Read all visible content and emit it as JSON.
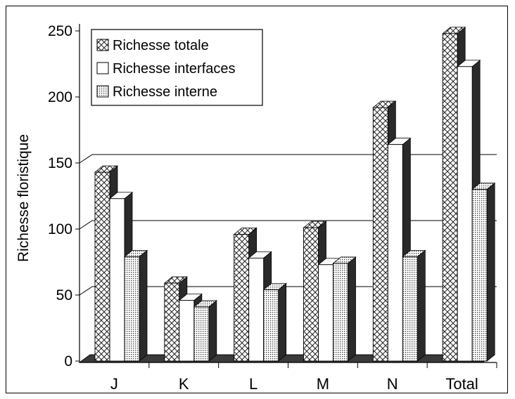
{
  "chart_data": {
    "type": "bar",
    "title": "",
    "xlabel": "",
    "ylabel": "Richesse floristique",
    "ylim": [
      0,
      250
    ],
    "yticks": [
      0,
      50,
      100,
      150,
      200,
      250
    ],
    "grid": true,
    "legend_position": "top-left",
    "categories": [
      "J",
      "K",
      "L",
      "M",
      "N",
      "Total"
    ],
    "series": [
      {
        "name": "Richesse totale",
        "pattern": "crosshatch",
        "values": [
          143,
          59,
          96,
          101,
          192,
          248
        ]
      },
      {
        "name": "Richesse interfaces",
        "pattern": "white",
        "values": [
          123,
          46,
          78,
          73,
          164,
          223
        ]
      },
      {
        "name": "Richesse interne",
        "pattern": "dotted",
        "values": [
          79,
          41,
          54,
          74,
          79,
          130
        ]
      }
    ]
  }
}
